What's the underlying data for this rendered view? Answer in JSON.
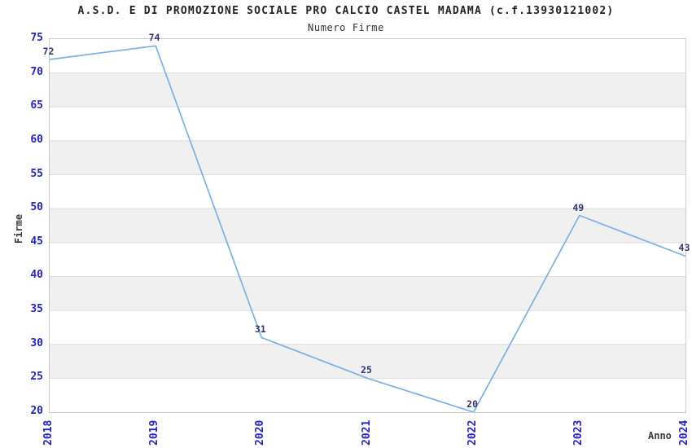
{
  "chart_data": {
    "type": "line",
    "title": "A.S.D. E DI PROMOZIONE SOCIALE PRO CALCIO CASTEL MADAMA (c.f.13930121002)",
    "subtitle": "Numero Firme",
    "xlabel": "Anno",
    "ylabel": "Firme",
    "x": [
      "2018",
      "2019",
      "2020",
      "2021",
      "2022",
      "2023",
      "2024"
    ],
    "values": [
      72,
      74,
      31,
      25,
      20,
      49,
      43
    ],
    "ylim": [
      20,
      75
    ],
    "ytick_step": 5,
    "grid": "horizontal",
    "band_fill": "alternating-horizontal-stripes",
    "legend": "none",
    "point_labels_visible": true,
    "colors": {
      "line": "#7AAFE5",
      "axis_tick_text": "#2222CC",
      "point_label_text": "#333377",
      "band_stripe": "#F0F0F0",
      "gridline": "#DBDBDB",
      "plot_border": "#C9C9C9",
      "title_text": "#222222",
      "axis_label_text": "#3A3A3A",
      "background": "#FFFFFF"
    }
  }
}
